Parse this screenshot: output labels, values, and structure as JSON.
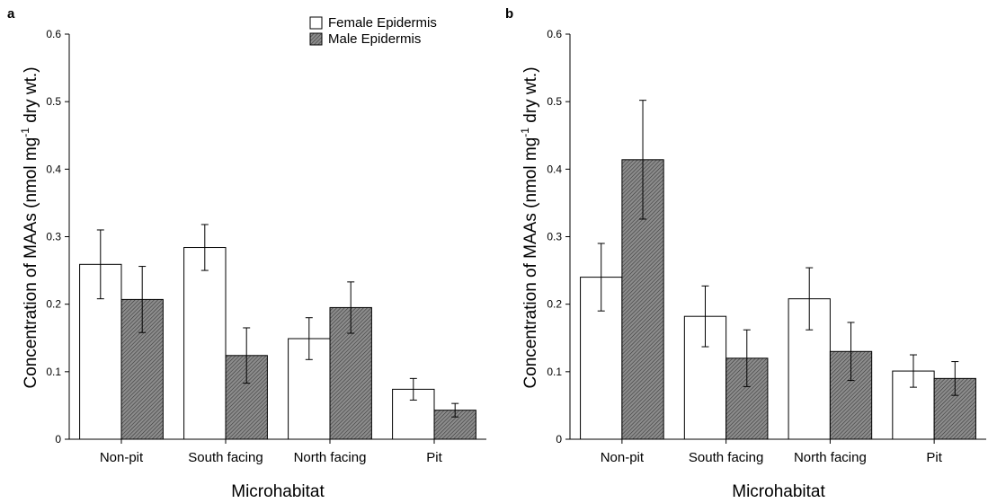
{
  "chart_data": [
    {
      "type": "bar",
      "panel": "a",
      "xlabel": "Microhabitat",
      "ylabel": "Concentration of MAAs (nmol mg",
      "ylabel_sup": "-1",
      "ylabel_tail": " dry wt.)",
      "ylim": [
        0,
        0.6
      ],
      "yticks": [
        0,
        0.1,
        0.2,
        0.3,
        0.4,
        0.5,
        0.6
      ],
      "categories": [
        "Non-pit",
        "South facing",
        "North facing",
        "Pit"
      ],
      "series": [
        {
          "name": "Female Epidermis",
          "values": [
            0.259,
            0.284,
            0.149,
            0.074
          ],
          "errors": [
            0.051,
            0.034,
            0.031,
            0.016
          ]
        },
        {
          "name": "Male Epidermis",
          "values": [
            0.207,
            0.124,
            0.195,
            0.043
          ],
          "errors": [
            0.049,
            0.041,
            0.038,
            0.01
          ]
        }
      ],
      "legend": "top-right"
    },
    {
      "type": "bar",
      "panel": "b",
      "xlabel": "Microhabitat",
      "ylabel": "Concentration of MAAs (nmol mg",
      "ylabel_sup": "-1",
      "ylabel_tail": " dry wt.)",
      "ylim": [
        0,
        0.6
      ],
      "yticks": [
        0,
        0.1,
        0.2,
        0.3,
        0.4,
        0.5,
        0.6
      ],
      "categories": [
        "Non-pit",
        "South facing",
        "North facing",
        "Pit"
      ],
      "series": [
        {
          "name": "Female Epidermis",
          "values": [
            0.24,
            0.182,
            0.208,
            0.101
          ],
          "errors": [
            0.05,
            0.045,
            0.046,
            0.024
          ]
        },
        {
          "name": "Male Epidermis",
          "values": [
            0.414,
            0.12,
            0.13,
            0.09
          ],
          "errors": [
            0.088,
            0.042,
            0.043,
            0.025
          ]
        }
      ]
    }
  ],
  "colors": {
    "female_fill": "#ffffff",
    "male_fill": "#7a7a7a",
    "stroke": "#000000"
  }
}
